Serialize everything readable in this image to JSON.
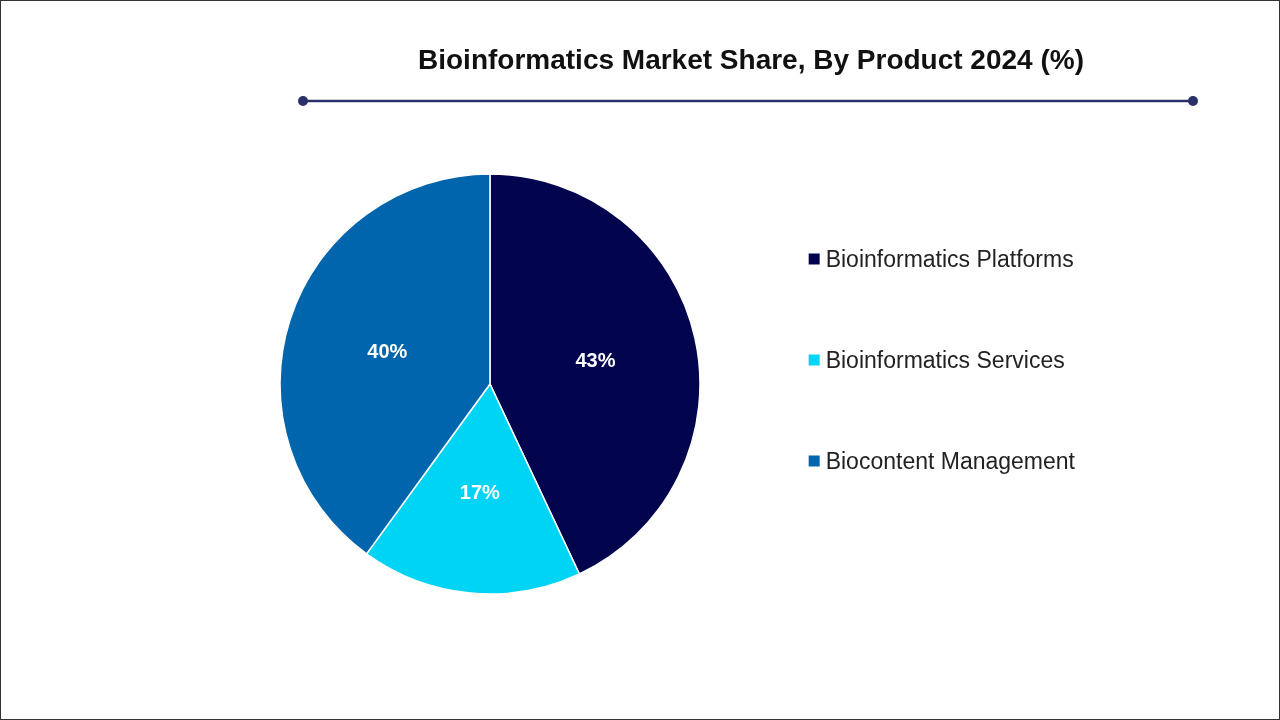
{
  "chart_data": {
    "type": "pie",
    "title": "Bioinformatics Market Share, By Product 2024 (%)",
    "categories": [
      "Bioinformatics Platforms",
      "Bioinformatics Services",
      "Biocontent Management"
    ],
    "values": [
      43,
      17,
      40
    ],
    "colors": [
      "#03044e",
      "#00d4f5",
      "#0065ad"
    ],
    "value_labels": [
      "43%",
      "17%",
      "40%"
    ],
    "legend": "right"
  }
}
